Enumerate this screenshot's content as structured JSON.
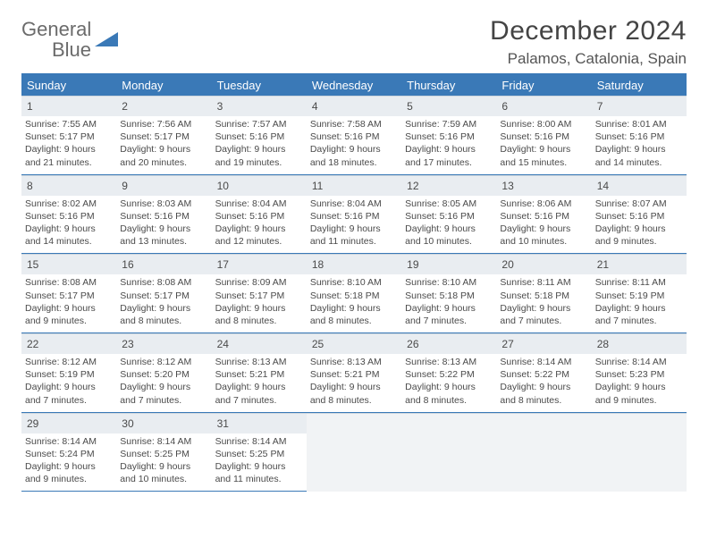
{
  "logo": {
    "word1": "General",
    "word2": "Blue"
  },
  "title": "December 2024",
  "location": "Palamos, Catalonia, Spain",
  "colors": {
    "accent": "#3a79b7",
    "dow_bg": "#3a79b7",
    "dow_text": "#ffffff",
    "daynum_bg": "#e9edf1",
    "cell_border": "#cdd6de",
    "empty_bg": "#f1f3f5",
    "text": "#4a4a4a"
  },
  "days_of_week": [
    "Sunday",
    "Monday",
    "Tuesday",
    "Wednesday",
    "Thursday",
    "Friday",
    "Saturday"
  ],
  "weeks": [
    [
      {
        "n": "1",
        "sr": "7:55 AM",
        "ss": "5:17 PM",
        "dl": "9 hours and 21 minutes."
      },
      {
        "n": "2",
        "sr": "7:56 AM",
        "ss": "5:17 PM",
        "dl": "9 hours and 20 minutes."
      },
      {
        "n": "3",
        "sr": "7:57 AM",
        "ss": "5:16 PM",
        "dl": "9 hours and 19 minutes."
      },
      {
        "n": "4",
        "sr": "7:58 AM",
        "ss": "5:16 PM",
        "dl": "9 hours and 18 minutes."
      },
      {
        "n": "5",
        "sr": "7:59 AM",
        "ss": "5:16 PM",
        "dl": "9 hours and 17 minutes."
      },
      {
        "n": "6",
        "sr": "8:00 AM",
        "ss": "5:16 PM",
        "dl": "9 hours and 15 minutes."
      },
      {
        "n": "7",
        "sr": "8:01 AM",
        "ss": "5:16 PM",
        "dl": "9 hours and 14 minutes."
      }
    ],
    [
      {
        "n": "8",
        "sr": "8:02 AM",
        "ss": "5:16 PM",
        "dl": "9 hours and 14 minutes."
      },
      {
        "n": "9",
        "sr": "8:03 AM",
        "ss": "5:16 PM",
        "dl": "9 hours and 13 minutes."
      },
      {
        "n": "10",
        "sr": "8:04 AM",
        "ss": "5:16 PM",
        "dl": "9 hours and 12 minutes."
      },
      {
        "n": "11",
        "sr": "8:04 AM",
        "ss": "5:16 PM",
        "dl": "9 hours and 11 minutes."
      },
      {
        "n": "12",
        "sr": "8:05 AM",
        "ss": "5:16 PM",
        "dl": "9 hours and 10 minutes."
      },
      {
        "n": "13",
        "sr": "8:06 AM",
        "ss": "5:16 PM",
        "dl": "9 hours and 10 minutes."
      },
      {
        "n": "14",
        "sr": "8:07 AM",
        "ss": "5:16 PM",
        "dl": "9 hours and 9 minutes."
      }
    ],
    [
      {
        "n": "15",
        "sr": "8:08 AM",
        "ss": "5:17 PM",
        "dl": "9 hours and 9 minutes."
      },
      {
        "n": "16",
        "sr": "8:08 AM",
        "ss": "5:17 PM",
        "dl": "9 hours and 8 minutes."
      },
      {
        "n": "17",
        "sr": "8:09 AM",
        "ss": "5:17 PM",
        "dl": "9 hours and 8 minutes."
      },
      {
        "n": "18",
        "sr": "8:10 AM",
        "ss": "5:18 PM",
        "dl": "9 hours and 8 minutes."
      },
      {
        "n": "19",
        "sr": "8:10 AM",
        "ss": "5:18 PM",
        "dl": "9 hours and 7 minutes."
      },
      {
        "n": "20",
        "sr": "8:11 AM",
        "ss": "5:18 PM",
        "dl": "9 hours and 7 minutes."
      },
      {
        "n": "21",
        "sr": "8:11 AM",
        "ss": "5:19 PM",
        "dl": "9 hours and 7 minutes."
      }
    ],
    [
      {
        "n": "22",
        "sr": "8:12 AM",
        "ss": "5:19 PM",
        "dl": "9 hours and 7 minutes."
      },
      {
        "n": "23",
        "sr": "8:12 AM",
        "ss": "5:20 PM",
        "dl": "9 hours and 7 minutes."
      },
      {
        "n": "24",
        "sr": "8:13 AM",
        "ss": "5:21 PM",
        "dl": "9 hours and 7 minutes."
      },
      {
        "n": "25",
        "sr": "8:13 AM",
        "ss": "5:21 PM",
        "dl": "9 hours and 8 minutes."
      },
      {
        "n": "26",
        "sr": "8:13 AM",
        "ss": "5:22 PM",
        "dl": "9 hours and 8 minutes."
      },
      {
        "n": "27",
        "sr": "8:14 AM",
        "ss": "5:22 PM",
        "dl": "9 hours and 8 minutes."
      },
      {
        "n": "28",
        "sr": "8:14 AM",
        "ss": "5:23 PM",
        "dl": "9 hours and 9 minutes."
      }
    ],
    [
      {
        "n": "29",
        "sr": "8:14 AM",
        "ss": "5:24 PM",
        "dl": "9 hours and 9 minutes."
      },
      {
        "n": "30",
        "sr": "8:14 AM",
        "ss": "5:25 PM",
        "dl": "9 hours and 10 minutes."
      },
      {
        "n": "31",
        "sr": "8:14 AM",
        "ss": "5:25 PM",
        "dl": "9 hours and 11 minutes."
      },
      null,
      null,
      null,
      null
    ]
  ],
  "labels": {
    "sunrise": "Sunrise: ",
    "sunset": "Sunset: ",
    "daylight": "Daylight: "
  }
}
